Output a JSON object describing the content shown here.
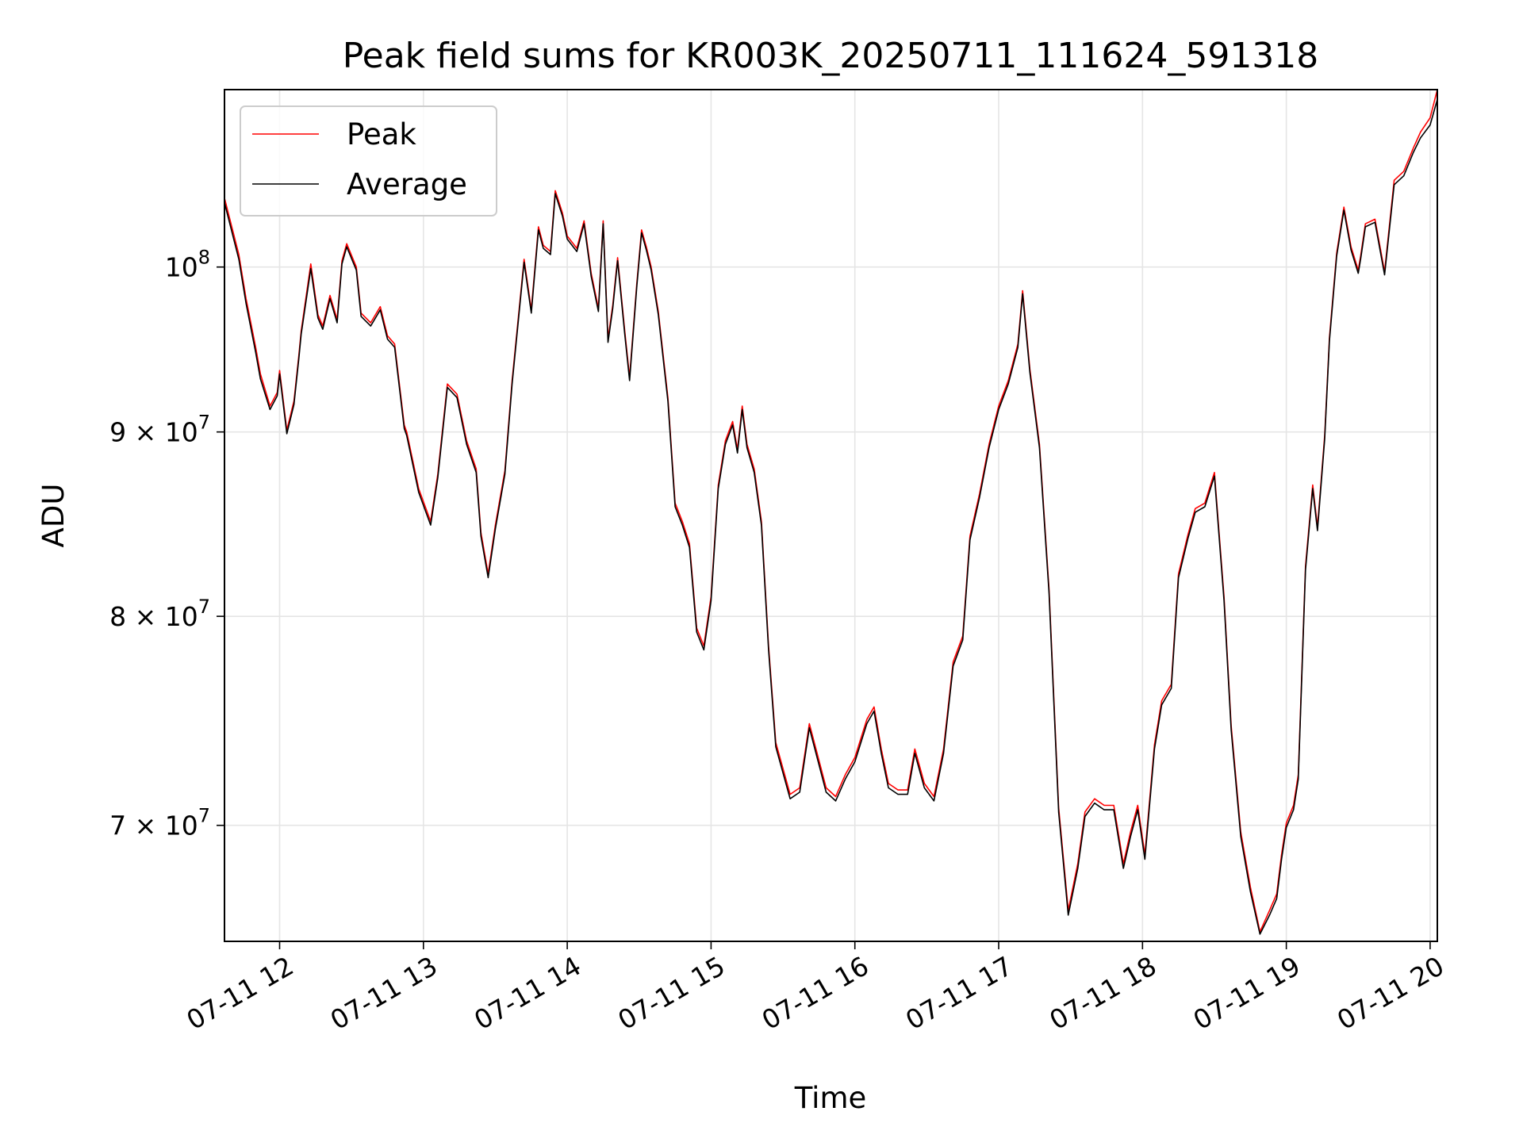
{
  "chart_data": {
    "type": "line",
    "title": "Peak field sums for KR003K_20250711_111624_591318",
    "xlabel": "Time",
    "ylabel": "ADU",
    "y_scale": "log",
    "grid": true,
    "legend_position": "top-left",
    "xlim": [
      "2025-07-11 11:37",
      "2025-07-11 20:03"
    ],
    "ylim": [
      65000000,
      112000000
    ],
    "x_ticks": [
      {
        "value": "2025-07-11 12:00",
        "label": "07-11 12"
      },
      {
        "value": "2025-07-11 13:00",
        "label": "07-11 13"
      },
      {
        "value": "2025-07-11 14:00",
        "label": "07-11 14"
      },
      {
        "value": "2025-07-11 15:00",
        "label": "07-11 15"
      },
      {
        "value": "2025-07-11 16:00",
        "label": "07-11 16"
      },
      {
        "value": "2025-07-11 17:00",
        "label": "07-11 17"
      },
      {
        "value": "2025-07-11 18:00",
        "label": "07-11 18"
      },
      {
        "value": "2025-07-11 19:00",
        "label": "07-11 19"
      },
      {
        "value": "2025-07-11 20:00",
        "label": "07-11 20"
      }
    ],
    "y_ticks": [
      {
        "value": 70000000,
        "mantissa": "7 × 10",
        "exponent": "7"
      },
      {
        "value": 80000000,
        "mantissa": "8 × 10",
        "exponent": "7"
      },
      {
        "value": 90000000,
        "mantissa": "9 × 10",
        "exponent": "7"
      },
      {
        "value": 100000000,
        "mantissa": "10",
        "exponent": "8"
      }
    ],
    "colors": {
      "Peak": "#ff0000",
      "Average": "#000000",
      "grid": "#e5e5e5"
    },
    "x": [
      "2025-07-11 11:37",
      "2025-07-11 11:43",
      "2025-07-11 11:46",
      "2025-07-11 11:50",
      "2025-07-11 11:52",
      "2025-07-11 11:56",
      "2025-07-11 11:59",
      "2025-07-11 12:00",
      "2025-07-11 12:03",
      "2025-07-11 12:06",
      "2025-07-11 12:08",
      "2025-07-11 12:09",
      "2025-07-11 12:13",
      "2025-07-11 12:16",
      "2025-07-11 12:18",
      "2025-07-11 12:21",
      "2025-07-11 12:24",
      "2025-07-11 12:26",
      "2025-07-11 12:28",
      "2025-07-11 12:32",
      "2025-07-11 12:34",
      "2025-07-11 12:38",
      "2025-07-11 12:42",
      "2025-07-11 12:45",
      "2025-07-11 12:48",
      "2025-07-11 12:52",
      "2025-07-11 12:53",
      "2025-07-11 12:58",
      "2025-07-11 13:03",
      "2025-07-11 13:06",
      "2025-07-11 13:10",
      "2025-07-11 13:14",
      "2025-07-11 13:18",
      "2025-07-11 13:22",
      "2025-07-11 13:24",
      "2025-07-11 13:27",
      "2025-07-11 13:30",
      "2025-07-11 13:34",
      "2025-07-11 13:37",
      "2025-07-11 13:42",
      "2025-07-11 13:45",
      "2025-07-11 13:48",
      "2025-07-11 13:50",
      "2025-07-11 13:53",
      "2025-07-11 13:55",
      "2025-07-11 13:58",
      "2025-07-11 14:00",
      "2025-07-11 14:04",
      "2025-07-11 14:07",
      "2025-07-11 14:10",
      "2025-07-11 14:13",
      "2025-07-11 14:15",
      "2025-07-11 14:17",
      "2025-07-11 14:19",
      "2025-07-11 14:21",
      "2025-07-11 14:24",
      "2025-07-11 14:26",
      "2025-07-11 14:29",
      "2025-07-11 14:31",
      "2025-07-11 14:33",
      "2025-07-11 14:35",
      "2025-07-11 14:38",
      "2025-07-11 14:42",
      "2025-07-11 14:45",
      "2025-07-11 14:48",
      "2025-07-11 14:51",
      "2025-07-11 14:54",
      "2025-07-11 14:57",
      "2025-07-11 15:00",
      "2025-07-11 15:03",
      "2025-07-11 15:06",
      "2025-07-11 15:09",
      "2025-07-11 15:11",
      "2025-07-11 15:13",
      "2025-07-11 15:15",
      "2025-07-11 15:18",
      "2025-07-11 15:21",
      "2025-07-11 15:24",
      "2025-07-11 15:27",
      "2025-07-11 15:33",
      "2025-07-11 15:37",
      "2025-07-11 15:41",
      "2025-07-11 15:44",
      "2025-07-11 15:48",
      "2025-07-11 15:52",
      "2025-07-11 15:56",
      "2025-07-11 16:00",
      "2025-07-11 16:05",
      "2025-07-11 16:08",
      "2025-07-11 16:11",
      "2025-07-11 16:14",
      "2025-07-11 16:18",
      "2025-07-11 16:22",
      "2025-07-11 16:25",
      "2025-07-11 16:29",
      "2025-07-11 16:33",
      "2025-07-11 16:37",
      "2025-07-11 16:41",
      "2025-07-11 16:45",
      "2025-07-11 16:48",
      "2025-07-11 16:52",
      "2025-07-11 16:56",
      "2025-07-11 17:00",
      "2025-07-11 17:04",
      "2025-07-11 17:08",
      "2025-07-11 17:10",
      "2025-07-11 17:13",
      "2025-07-11 17:17",
      "2025-07-11 17:21",
      "2025-07-11 17:25",
      "2025-07-11 17:29",
      "2025-07-11 17:33",
      "2025-07-11 17:36",
      "2025-07-11 17:40",
      "2025-07-11 17:44",
      "2025-07-11 17:48",
      "2025-07-11 17:52",
      "2025-07-11 17:55",
      "2025-07-11 17:58",
      "2025-07-11 18:01",
      "2025-07-11 18:05",
      "2025-07-11 18:08",
      "2025-07-11 18:12",
      "2025-07-11 18:15",
      "2025-07-11 18:19",
      "2025-07-11 18:22",
      "2025-07-11 18:26",
      "2025-07-11 18:30",
      "2025-07-11 18:34",
      "2025-07-11 18:37",
      "2025-07-11 18:41",
      "2025-07-11 18:45",
      "2025-07-11 18:49",
      "2025-07-11 18:53",
      "2025-07-11 18:56",
      "2025-07-11 18:58",
      "2025-07-11 19:00",
      "2025-07-11 19:03",
      "2025-07-11 19:05",
      "2025-07-11 19:08",
      "2025-07-11 19:11",
      "2025-07-11 19:13",
      "2025-07-11 19:16",
      "2025-07-11 19:18",
      "2025-07-11 19:21",
      "2025-07-11 19:24",
      "2025-07-11 19:27",
      "2025-07-11 19:30",
      "2025-07-11 19:31",
      "2025-07-11 19:33",
      "2025-07-11 19:37",
      "2025-07-11 19:41",
      "2025-07-11 19:45",
      "2025-07-11 19:49",
      "2025-07-11 19:53",
      "2025-07-11 19:56",
      "2025-07-11 20:00",
      "2025-07-11 20:03"
    ],
    "series": [
      {
        "name": "Peak",
        "values": [
          104500000,
          100800000,
          98000000,
          95000000,
          93400000,
          91500000,
          92300000,
          93600000,
          90100000,
          91800000,
          94500000,
          96000000,
          100200000,
          97000000,
          96300000,
          98200000,
          96700000,
          100400000,
          101500000,
          100000000,
          97100000,
          96500000,
          97500000,
          95700000,
          95200000,
          90400000,
          90000000,
          86800000,
          85000000,
          87600000,
          92800000,
          92200000,
          89500000,
          87900000,
          84400000,
          82200000,
          84800000,
          87800000,
          93000000,
          100500000,
          97300000,
          102600000,
          101400000,
          101000000,
          105000000,
          103500000,
          102000000,
          101200000,
          103000000,
          99600000,
          97400000,
          103000000,
          95500000,
          97600000,
          100600000,
          96000000,
          93200000,
          98900000,
          102400000,
          101300000,
          100000000,
          97200000,
          92000000,
          86000000,
          85000000,
          83800000,
          79400000,
          78500000,
          81000000,
          87000000,
          89500000,
          90600000,
          89000000,
          91500000,
          89300000,
          87900000,
          85000000,
          78500000,
          73800000,
          71400000,
          71700000,
          74700000,
          73400000,
          71700000,
          71300000,
          72300000,
          73100000,
          74900000,
          75500000,
          73500000,
          71900000,
          71600000,
          71600000,
          73500000,
          71900000,
          71300000,
          73500000,
          77700000,
          79000000,
          84200000,
          86500000,
          89300000,
          91500000,
          93000000,
          95200000,
          98500000,
          93700000,
          89300000,
          81400000,
          70800000,
          66300000,
          68300000,
          70600000,
          71200000,
          70900000,
          70900000,
          68300000,
          69700000,
          70900000,
          68700000,
          73700000,
          75800000,
          76600000,
          82200000,
          84300000,
          85700000,
          86000000,
          87700000,
          81000000,
          74600000,
          69700000,
          67300000,
          65400000,
          66300000,
          67000000,
          68700000,
          70100000,
          70900000,
          72300000,
          82600000,
          87000000,
          84700000,
          89800000,
          95600000,
          100900000,
          103900000,
          101300000,
          99800000,
          100700000,
          102800000,
          103100000,
          99700000,
          105700000,
          106300000,
          107900000,
          109000000,
          110000000,
          112000000
        ]
      },
      {
        "name": "Average",
        "values": [
          104200000,
          100500000,
          97700000,
          94700000,
          93100000,
          91300000,
          92100000,
          93400000,
          89900000,
          91600000,
          94300000,
          95800000,
          99900000,
          96800000,
          96100000,
          98000000,
          96500000,
          100200000,
          101300000,
          99800000,
          96900000,
          96300000,
          97300000,
          95500000,
          95000000,
          90200000,
          89800000,
          86600000,
          84800000,
          87400000,
          92600000,
          92000000,
          89300000,
          87700000,
          84200000,
          82000000,
          84600000,
          87600000,
          92800000,
          100300000,
          97100000,
          102400000,
          101200000,
          100800000,
          104800000,
          103300000,
          101800000,
          101000000,
          102800000,
          99400000,
          97200000,
          102800000,
          95300000,
          97400000,
          100400000,
          95800000,
          93000000,
          98700000,
          102200000,
          101100000,
          99800000,
          97000000,
          91800000,
          85800000,
          84800000,
          83600000,
          79200000,
          78300000,
          80800000,
          86800000,
          89300000,
          90400000,
          88800000,
          91300000,
          89100000,
          87700000,
          84800000,
          78300000,
          73600000,
          71200000,
          71500000,
          74500000,
          73200000,
          71500000,
          71100000,
          72100000,
          72900000,
          74700000,
          75300000,
          73300000,
          71700000,
          71400000,
          71400000,
          73300000,
          71700000,
          71100000,
          73300000,
          77500000,
          78800000,
          84000000,
          86300000,
          89100000,
          91300000,
          92800000,
          95000000,
          98300000,
          93500000,
          89100000,
          81200000,
          70600000,
          66100000,
          68100000,
          70400000,
          71000000,
          70700000,
          70700000,
          68100000,
          69500000,
          70700000,
          68500000,
          73500000,
          75600000,
          76400000,
          82000000,
          84100000,
          85500000,
          85800000,
          87500000,
          80800000,
          74400000,
          69500000,
          67100000,
          65300000,
          66100000,
          66800000,
          68500000,
          69900000,
          70700000,
          72100000,
          82400000,
          86800000,
          84500000,
          89600000,
          95400000,
          100700000,
          103700000,
          101100000,
          99600000,
          100500000,
          102600000,
          102900000,
          99500000,
          105400000,
          106000000,
          107600000,
          108600000,
          109500000,
          111300000
        ]
      }
    ]
  }
}
